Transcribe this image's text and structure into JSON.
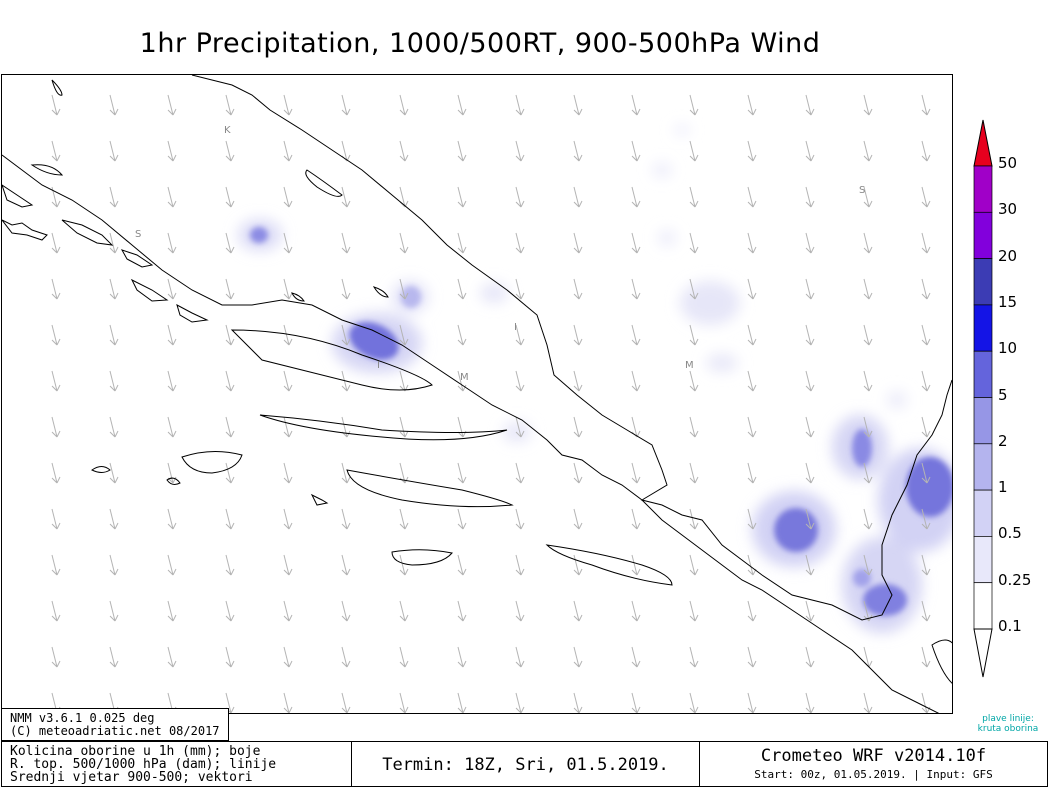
{
  "title": "1hr Precipitation, 1000/500RT, 900-500hPa Wind",
  "model_box": {
    "line1": "NMM v3.6.1 0.025 deg",
    "line2": "(C) meteoadriatic.net 08/2017"
  },
  "description": {
    "line1": "Kolicina oborine u 1h (mm); boje",
    "line2": "R. top. 500/1000 hPa (dam); linije",
    "line3": "Srednji vjetar 900-500; vektori"
  },
  "termin": "Termin: 18Z, Sri, 01.5.2019.",
  "crometeo": {
    "title": "Crometeo WRF v2014.10f",
    "start": "Start: 00z, 01.05.2019. | Input: GFS"
  },
  "legend_note": {
    "line1": "plave linije:",
    "line2": "kruta oborina"
  },
  "colorbar": {
    "levels": [
      "0.1",
      "0.25",
      "0.5",
      "1",
      "2",
      "5",
      "10",
      "15",
      "20",
      "30",
      "50"
    ],
    "colors": [
      "#ffffff",
      "#e8e8fa",
      "#d2d2f5",
      "#b4b4ee",
      "#9696e6",
      "#6464dc",
      "#1414e6",
      "#3c3cb4",
      "#8200dc",
      "#a000c8",
      "#e6001e"
    ]
  },
  "map_labels": [
    "K",
    "S",
    "S",
    "M",
    "M",
    "I",
    "I"
  ],
  "colors": {
    "precip_light": "#e6e6f8",
    "precip_mid": "#b8b8ee",
    "precip_strong": "#7070dc",
    "coastline": "#000000",
    "wind_vector": "#b4b4b4",
    "note": "#00a6a6"
  }
}
